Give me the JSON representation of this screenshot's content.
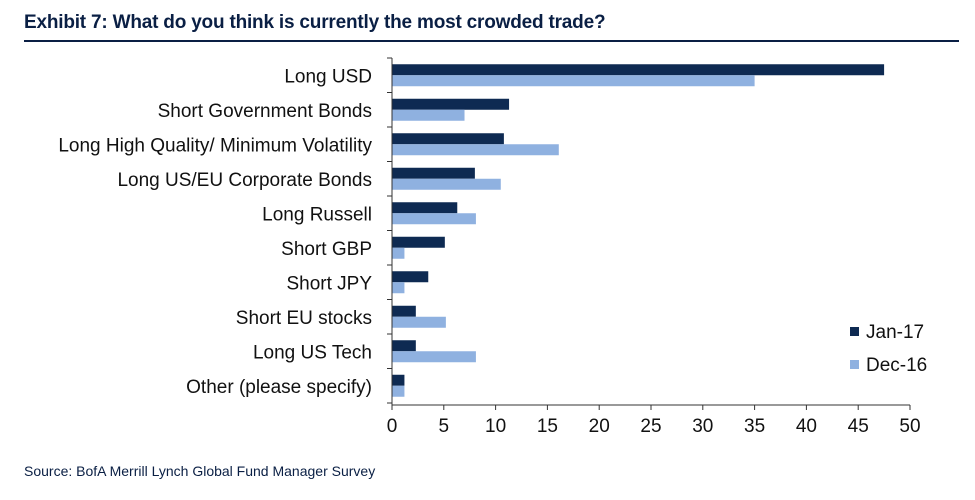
{
  "header": {
    "title": "Exhibit 7: What do you think is currently the most crowded trade?"
  },
  "footer": {
    "source": "Source: BofA Merrill Lynch Global Fund Manager Survey"
  },
  "colors": {
    "jan17": "#0e2a52",
    "dec16": "#8fb1e0",
    "text": "#111111",
    "title": "#0a1f44"
  },
  "chart_data": {
    "type": "bar",
    "orientation": "horizontal",
    "title": "Exhibit 7: What do you think is currently the most crowded trade?",
    "xlabel": "",
    "ylabel": "",
    "xlim": [
      0,
      50
    ],
    "xticks": [
      0,
      5,
      10,
      15,
      20,
      25,
      30,
      35,
      40,
      45,
      50
    ],
    "grid": false,
    "legend_position": "bottom-right",
    "categories": [
      "Long USD",
      "Short Government Bonds",
      "Long High Quality/ Minimum Volatility",
      "Long US/EU Corporate Bonds",
      "Long Russell",
      "Short GBP",
      "Short JPY",
      "Short EU stocks",
      "Long US Tech",
      "Other (please specify)"
    ],
    "series": [
      {
        "name": "Jan-17",
        "color": "#0e2a52",
        "values": [
          47.5,
          11.3,
          10.8,
          8.0,
          6.3,
          5.1,
          3.5,
          2.3,
          2.3,
          1.2
        ]
      },
      {
        "name": "Dec-16",
        "color": "#8fb1e0",
        "values": [
          35.0,
          7.0,
          16.1,
          10.5,
          8.1,
          1.2,
          1.2,
          5.2,
          8.1,
          1.2
        ]
      }
    ]
  }
}
